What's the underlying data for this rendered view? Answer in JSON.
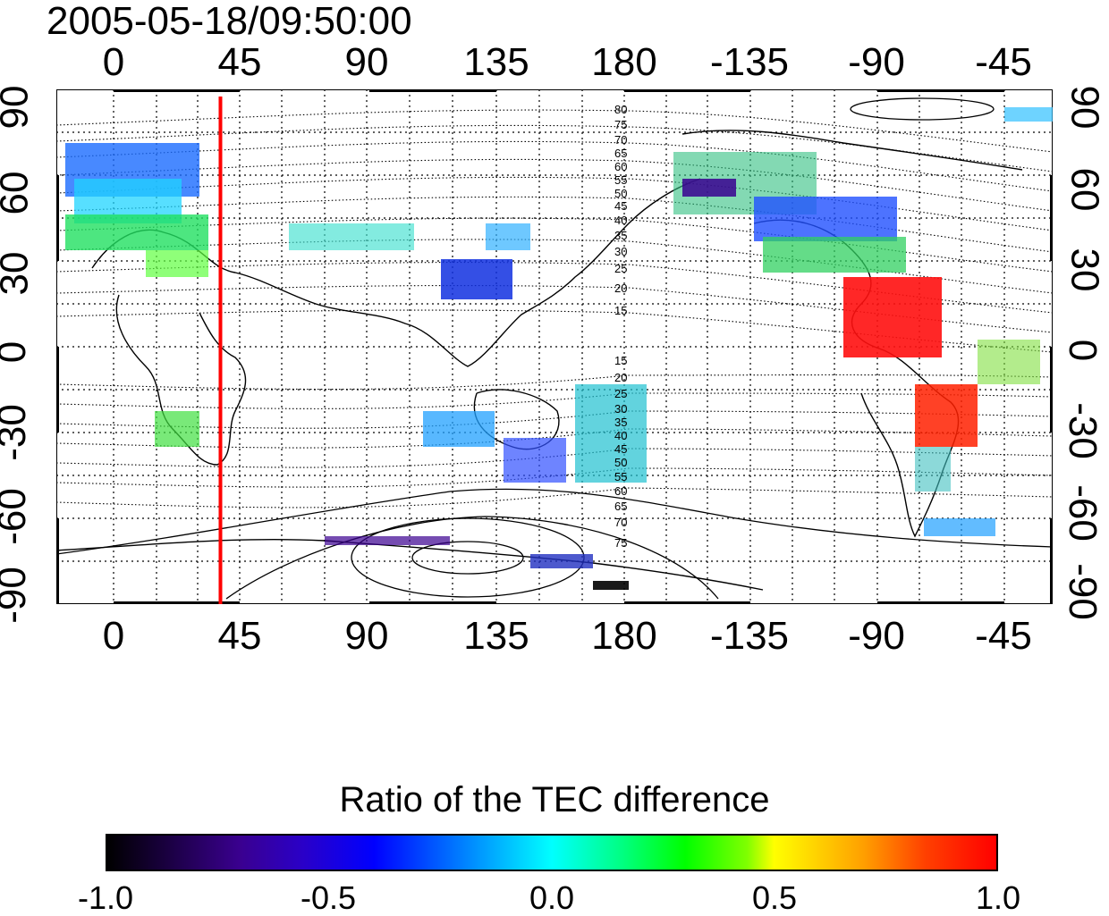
{
  "title": "2005-05-18/09:50:00",
  "top_lon_ticks": [
    "0",
    "45",
    "90",
    "135",
    "180",
    "-135",
    "-90",
    "-45"
  ],
  "bottom_lon_ticks": [
    "0",
    "45",
    "90",
    "135",
    "180",
    "-135",
    "-90",
    "-45"
  ],
  "left_lat_ticks": [
    "90",
    "60",
    "30",
    "0",
    "-30",
    "-60",
    "-90"
  ],
  "right_lat_ticks": [
    "90",
    "60",
    "30",
    "0",
    "-30",
    "-60",
    "-90"
  ],
  "contour_labels_north": [
    "80",
    "75",
    "70",
    "65",
    "60",
    "55",
    "50",
    "45",
    "40",
    "35",
    "30",
    "25",
    "20",
    "15"
  ],
  "contour_labels_south": [
    "15",
    "20",
    "25",
    "30",
    "35",
    "40",
    "45",
    "50",
    "55",
    "60",
    "65",
    "70",
    "75"
  ],
  "marker_line_lon": 38,
  "marker_color": "#ff0000",
  "colorbar": {
    "title": "Ratio of the TEC difference",
    "labels": [
      "-1.0",
      "-0.5",
      "0.0",
      "0.5",
      "1.0"
    ]
  }
}
